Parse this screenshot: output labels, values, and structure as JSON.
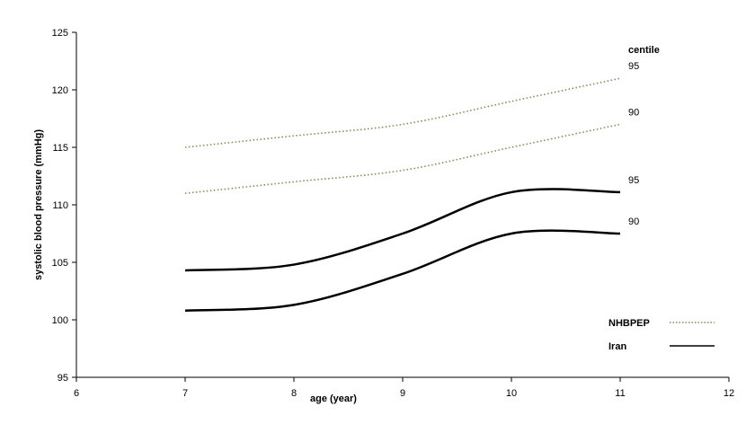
{
  "chart_data": {
    "type": "line",
    "xlabel": "age (year)",
    "ylabel": "systolic blood pressure (mmHg)",
    "xlim": [
      6,
      12
    ],
    "ylim": [
      95,
      125
    ],
    "xticks": [
      "6",
      "7",
      "8",
      "9",
      "10",
      "11",
      "12"
    ],
    "yticks": [
      "95",
      "100",
      "105",
      "110",
      "115",
      "120",
      "125"
    ],
    "grid": false,
    "legend_title": "centile",
    "legend_position": "bottom-right",
    "groups": [
      {
        "name": "NHBPEP",
        "style": "dotted",
        "color": "#8a8a55"
      },
      {
        "name": "Iran",
        "style": "solid",
        "color": "#000000"
      }
    ],
    "series": [
      {
        "group": "NHBPEP",
        "centile": "95",
        "x": [
          7,
          8,
          9,
          10,
          11
        ],
        "y": [
          115,
          116,
          117,
          119,
          121
        ]
      },
      {
        "group": "NHBPEP",
        "centile": "90",
        "x": [
          7,
          8,
          9,
          10,
          11
        ],
        "y": [
          111,
          112,
          113,
          115,
          117
        ]
      },
      {
        "group": "Iran",
        "centile": "95",
        "x": [
          7,
          8,
          9,
          10,
          11
        ],
        "y": [
          104.3,
          104.8,
          107.5,
          111.1,
          111.1
        ]
      },
      {
        "group": "Iran",
        "centile": "90",
        "x": [
          7,
          8,
          9,
          10,
          11
        ],
        "y": [
          100.8,
          101.3,
          104,
          107.5,
          107.5
        ]
      }
    ]
  }
}
